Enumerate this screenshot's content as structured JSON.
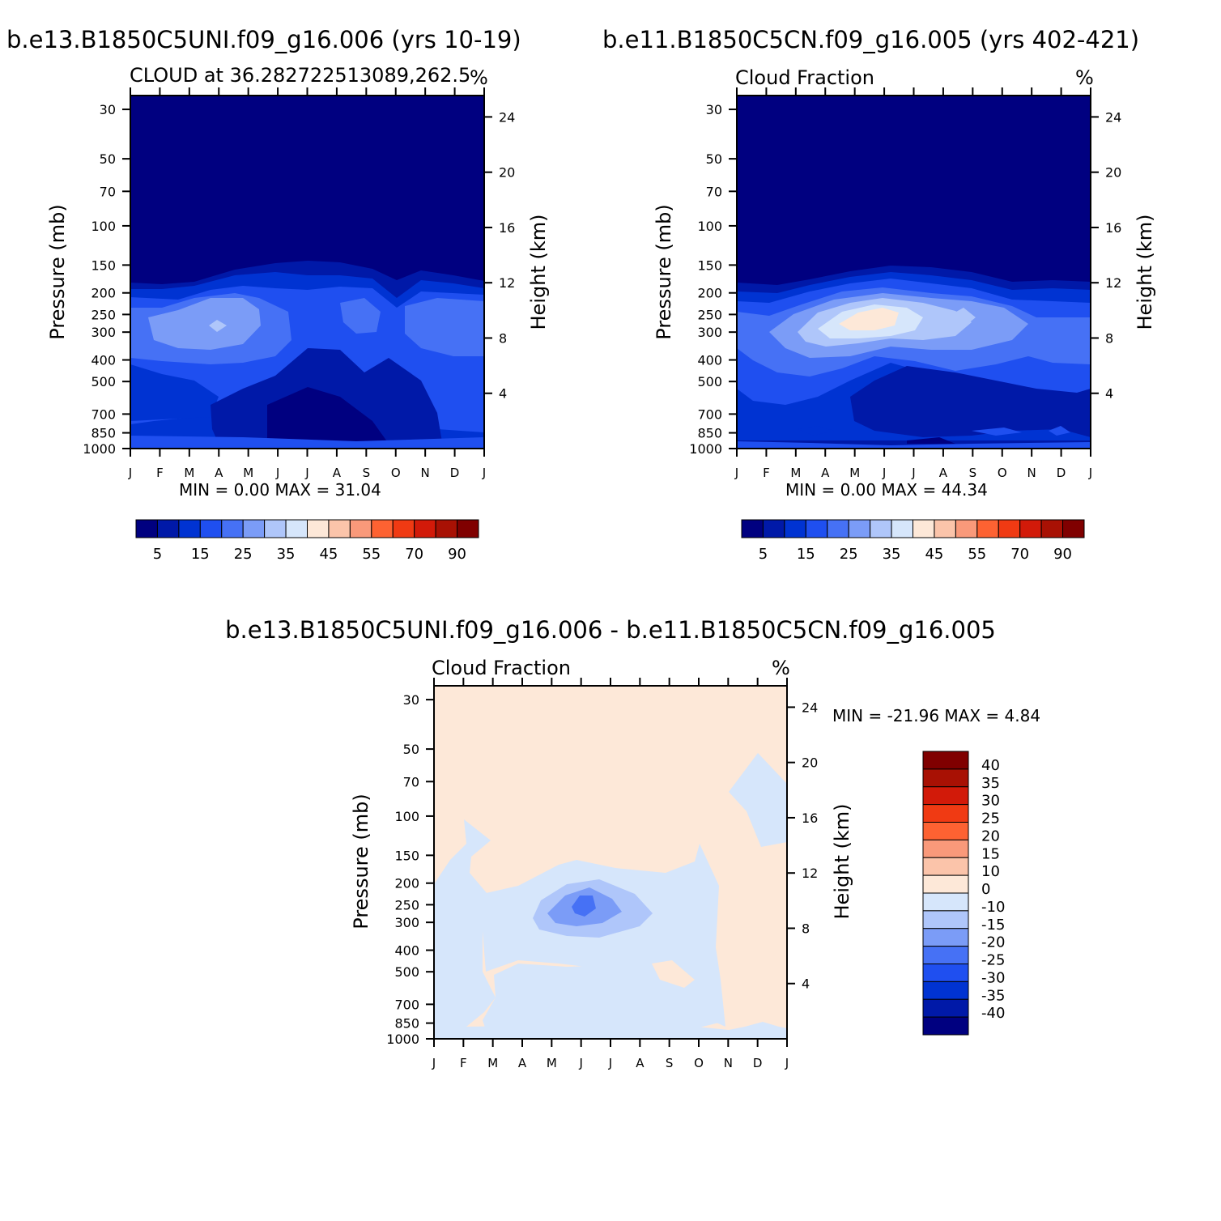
{
  "colors": {
    "abs_scale": [
      "#000080",
      "#0019a8",
      "#0033d2",
      "#1f4ff0",
      "#4671f5",
      "#7b9cf7",
      "#afc6fa",
      "#d6e6fb",
      "#fde8d8",
      "#fbc4aa",
      "#f9997a",
      "#fd6232",
      "#f03a13",
      "#d21a09",
      "#a81104",
      "#800000"
    ],
    "diff_scale": [
      "#000080",
      "#0019a8",
      "#0033d2",
      "#1f4ff0",
      "#4671f5",
      "#7b9cf7",
      "#afc6fa",
      "#d6e6fb",
      "#fde8d8",
      "#fbc4aa",
      "#f9997a",
      "#fd6232",
      "#f03a13",
      "#d21a09",
      "#a81104",
      "#800000"
    ]
  },
  "panels": [
    {
      "id": "case1",
      "case_title": "b.e13.B1850C5UNI.f09_g16.006 (yrs 10-19)",
      "left_label": "CLOUD at 36.282722513089,262.5",
      "right_label": "%",
      "ylabel": "Pressure (mb)",
      "ylabel_right": "Height (km)",
      "minmax": "MIN =     0.00  MAX =    31.04",
      "colorbar_labels": [
        "5",
        "15",
        "25",
        "35",
        "45",
        "55",
        "70",
        "90"
      ]
    },
    {
      "id": "case2",
      "case_title": "b.e11.B1850C5CN.f09_g16.005 (yrs 402-421)",
      "left_label": "Cloud Fraction",
      "right_label": "%",
      "ylabel": "Pressure (mb)",
      "ylabel_right": "Height (km)",
      "minmax": "MIN =     0.00  MAX =    44.34",
      "colorbar_labels": [
        "5",
        "15",
        "25",
        "35",
        "45",
        "55",
        "70",
        "90"
      ]
    },
    {
      "id": "diff",
      "case_title": "b.e13.B1850C5UNI.f09_g16.006 - b.e11.B1850C5CN.f09_g16.005",
      "left_label": "Cloud Fraction",
      "right_label": "%",
      "ylabel": "Pressure (mb)",
      "ylabel_right": "Height (km)",
      "minmax": "MIN = -21.96  MAX =     4.84",
      "colorbar_labels": [
        "40",
        "35",
        "30",
        "25",
        "20",
        "15",
        "10",
        "0",
        "-10",
        "-15",
        "-20",
        "-25",
        "-30",
        "-35",
        "-40"
      ]
    }
  ],
  "chart_data": [
    {
      "type": "heatmap",
      "title": "b.e13.B1850C5UNI.f09_g16.006 (yrs 10-19)",
      "subtitle": "CLOUD at 36.282722513089,262.5",
      "units": "%",
      "xlabel": "",
      "ylabel": "Pressure (mb)",
      "ylabel_right": "Height (km)",
      "x_tick_labels": [
        "J",
        "F",
        "M",
        "A",
        "M",
        "J",
        "J",
        "A",
        "S",
        "O",
        "N",
        "D",
        "J"
      ],
      "y_ticks": [
        30,
        50,
        70,
        100,
        150,
        200,
        250,
        300,
        400,
        500,
        700,
        850,
        1000
      ],
      "y_right_ticks": [
        24,
        20,
        16,
        12,
        8,
        4
      ],
      "min": 0.0,
      "max": 31.04,
      "levels": [
        5,
        10,
        15,
        20,
        25,
        30,
        35,
        40,
        45,
        50,
        55,
        60,
        70,
        80,
        90
      ],
      "blobs": [
        {
          "month": 2.9,
          "pressure": 270,
          "value": 28,
          "desc": "upper-level cloud maximum Mar-Apr"
        },
        {
          "month": 7.8,
          "pressure": 270,
          "value": 20,
          "desc": "secondary maximum Aug-Sep"
        },
        {
          "month": 10.8,
          "pressure": 280,
          "value": 22,
          "desc": "autumn-winter maximum Oct-Dec"
        },
        {
          "month": 6.0,
          "pressure": 750,
          "value": 2,
          "desc": "low-level minimum Jun-Aug"
        }
      ]
    },
    {
      "type": "heatmap",
      "title": "b.e11.B1850C5CN.f09_g16.005 (yrs 402-421)",
      "subtitle": "Cloud Fraction",
      "units": "%",
      "xlabel": "",
      "ylabel": "Pressure (mb)",
      "ylabel_right": "Height (km)",
      "x_tick_labels": [
        "J",
        "F",
        "M",
        "A",
        "M",
        "J",
        "J",
        "A",
        "S",
        "O",
        "N",
        "D",
        "J"
      ],
      "y_ticks": [
        30,
        50,
        70,
        100,
        150,
        200,
        250,
        300,
        400,
        500,
        700,
        850,
        1000
      ],
      "y_right_ticks": [
        24,
        20,
        16,
        12,
        8,
        4
      ],
      "min": 0.0,
      "max": 44.34,
      "levels": [
        5,
        10,
        15,
        20,
        25,
        30,
        35,
        40,
        45,
        50,
        55,
        60,
        70,
        80,
        90
      ],
      "blobs": [
        {
          "month": 4.9,
          "pressure": 260,
          "value": 42,
          "desc": "cloud maximum May-Jun near 250 mb"
        },
        {
          "month": 7.5,
          "pressure": 260,
          "value": 30,
          "desc": "secondary maximum Aug"
        },
        {
          "month": 11.0,
          "pressure": 300,
          "value": 20,
          "desc": "Nov-Dec"
        },
        {
          "month": 6.5,
          "pressure": 650,
          "value": 6,
          "desc": "low-level minimum"
        }
      ]
    },
    {
      "type": "heatmap",
      "title": "b.e13.B1850C5UNI.f09_g16.006 - b.e11.B1850C5CN.f09_g16.005",
      "subtitle": "Cloud Fraction",
      "units": "%",
      "xlabel": "",
      "ylabel": "Pressure (mb)",
      "ylabel_right": "Height (km)",
      "x_tick_labels": [
        "J",
        "F",
        "M",
        "A",
        "M",
        "J",
        "J",
        "A",
        "S",
        "O",
        "N",
        "D",
        "J"
      ],
      "y_ticks": [
        30,
        50,
        70,
        100,
        150,
        200,
        250,
        300,
        400,
        500,
        700,
        850,
        1000
      ],
      "y_right_ticks": [
        24,
        20,
        16,
        12,
        8,
        4
      ],
      "min": -21.96,
      "max": 4.84,
      "levels": [
        -40,
        -35,
        -30,
        -25,
        -20,
        -15,
        -10,
        0,
        10,
        15,
        20,
        25,
        30,
        35,
        40
      ],
      "blobs": [
        {
          "month": 4.9,
          "pressure": 260,
          "value": -22,
          "desc": "strongest negative difference May-Jun"
        },
        {
          "month": 6.0,
          "pressure": 450,
          "value": -5,
          "desc": "broad negative region Mar-Oct"
        },
        {
          "month": 11.0,
          "pressure": 80,
          "value": -3,
          "desc": "small negative region Nov-Dec aloft"
        }
      ]
    }
  ]
}
